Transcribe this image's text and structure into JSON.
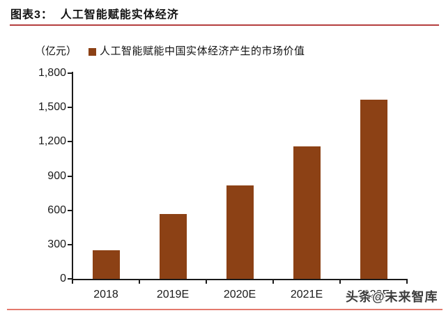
{
  "header": {
    "title": "图表3：  人工智能赋能实体经济"
  },
  "chart_data": {
    "type": "bar",
    "title": "人工智能赋能实体经济",
    "unit_label": "（亿元）",
    "legend": "人工智能赋能中国实体经济产生的市场价值",
    "legend_position": "top",
    "categories": [
      "2018",
      "2019E",
      "2020E",
      "2021E",
      "2022E"
    ],
    "values": [
      250,
      570,
      820,
      1160,
      1570
    ],
    "xlabel": "",
    "ylabel": "亿元",
    "ylim": [
      0,
      1800
    ],
    "ytick_step": 300,
    "grid": false,
    "bar_color": "#8c4115"
  },
  "watermark": {
    "text": "头条@未来智库"
  },
  "colors": {
    "title_rule": "#b43e3e",
    "bottom_rule": "#e4796d",
    "axis": "#1a1a1a",
    "bar": "#8c4115",
    "text": "#1a1a1a"
  }
}
